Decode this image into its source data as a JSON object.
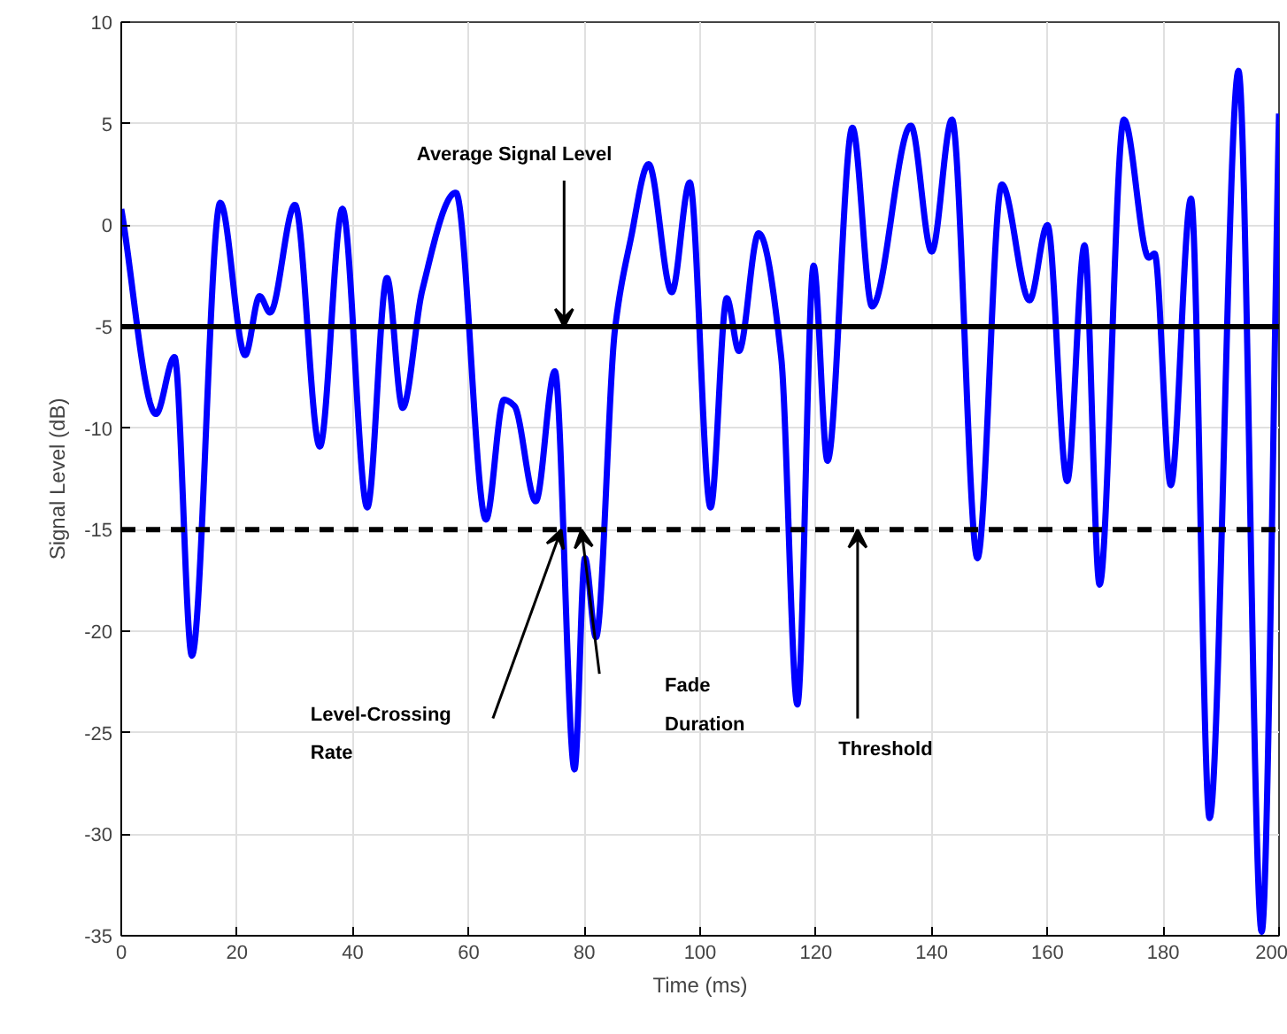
{
  "chart_data": {
    "type": "line",
    "xlabel": "Time (ms)",
    "ylabel": "Signal Level (dB)",
    "xlim": [
      0,
      200
    ],
    "ylim": [
      -35,
      10
    ],
    "xticks": [
      0,
      20,
      40,
      60,
      80,
      100,
      120,
      140,
      160,
      180,
      200
    ],
    "yticks": [
      -35,
      -30,
      -25,
      -20,
      -15,
      -10,
      -5,
      0,
      5,
      10
    ],
    "grid": true,
    "marker": "none",
    "line_style": "solid",
    "series": [
      {
        "color": "#0000ff",
        "x": [
          0,
          6,
          9.2,
          12.2,
          17.1,
          21.4,
          23.9,
          25.7,
          30,
          34.3,
          38.2,
          42.5,
          45.9,
          48.6,
          52,
          57.8,
          63,
          66.1,
          67.9,
          71.6,
          74.9,
          78.3,
          80.1,
          82,
          85.3,
          88,
          91.1,
          95.1,
          98.2,
          101.8,
          104.6,
          106.7,
          110.1,
          114,
          116.8,
          119.6,
          122,
          126.3,
          129.7,
          136.4,
          140,
          143.5,
          147.9,
          152.1,
          156.9,
          160,
          163.4,
          166.4,
          169,
          173.2,
          177.5,
          178.5,
          181.3,
          184.8,
          188,
          193,
          197,
          200
        ],
        "values": [
          0.8,
          -9.3,
          -6.5,
          -21.2,
          1.1,
          -6.4,
          -3.5,
          -4.3,
          1.0,
          -10.9,
          0.8,
          -13.9,
          -2.6,
          -9.0,
          -3.2,
          1.6,
          -14.5,
          -8.6,
          -8.9,
          -13.6,
          -7.2,
          -26.8,
          -16.4,
          -20.3,
          -5.1,
          -0.7,
          3.0,
          -3.3,
          2.1,
          -13.9,
          -3.6,
          -6.2,
          -0.4,
          -6.5,
          -23.6,
          -2.0,
          -11.6,
          4.8,
          -4.0,
          4.9,
          -1.3,
          5.2,
          -16.4,
          2.0,
          -3.7,
          0.0,
          -12.6,
          -1.0,
          -17.7,
          5.2,
          -1.6,
          -1.4,
          -12.8,
          1.3,
          -29.2,
          7.6,
          -34.8,
          5.5
        ]
      }
    ],
    "ref_lines": [
      {
        "axis": "y",
        "value": -5,
        "label": null,
        "color": "#000000",
        "line_style": "solid"
      },
      {
        "axis": "y",
        "value": -15,
        "label": null,
        "color": "#000000",
        "line_style": "dashed"
      }
    ],
    "annotations": [
      {
        "text": "Average Signal Level",
        "x": 76.5,
        "y": -5
      },
      "Level-Crossing\nRate",
      "Fade\nDuration",
      {
        "text": "Threshold",
        "x": 127.2,
        "y": -15
      }
    ]
  }
}
